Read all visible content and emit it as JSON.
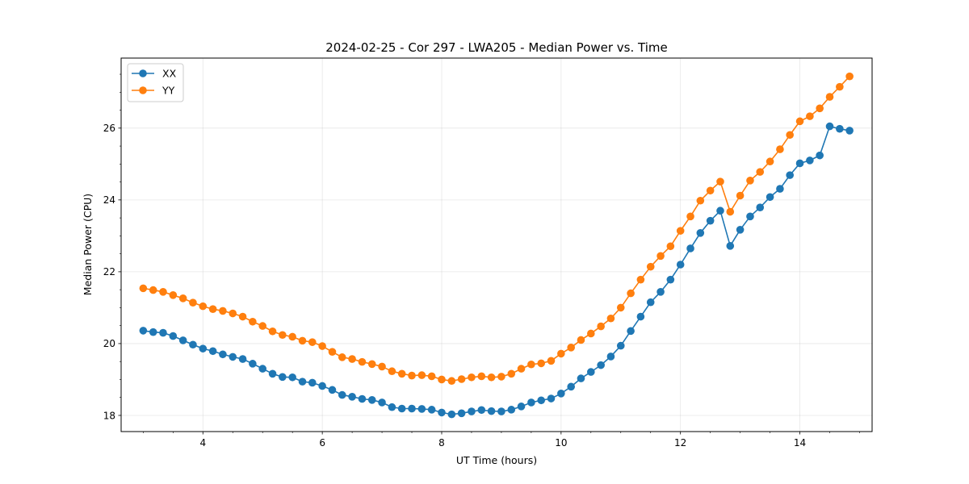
{
  "chart_data": {
    "type": "line",
    "title": "2024-02-25 - Cor 297 - LWA205 - Median Power vs. Time",
    "xlabel": "UT Time (hours)",
    "ylabel": "Median Power (CPU)",
    "xlim": [
      2.63,
      15.21
    ],
    "ylim": [
      17.55,
      27.95
    ],
    "xticks": [
      4,
      6,
      8,
      10,
      12,
      14
    ],
    "yticks": [
      18,
      20,
      22,
      24,
      26
    ],
    "xtick_labels": [
      "4",
      "6",
      "8",
      "10",
      "12",
      "14"
    ],
    "ytick_labels": [
      "18",
      "20",
      "22",
      "24",
      "26"
    ],
    "grid": true,
    "legend_position": "top-left",
    "x": [
      3.0,
      3.167,
      3.333,
      3.5,
      3.667,
      3.833,
      4.0,
      4.167,
      4.333,
      4.5,
      4.667,
      4.833,
      5.0,
      5.167,
      5.333,
      5.5,
      5.667,
      5.833,
      6.0,
      6.167,
      6.333,
      6.5,
      6.667,
      6.833,
      7.0,
      7.167,
      7.333,
      7.5,
      7.667,
      7.833,
      8.0,
      8.167,
      8.333,
      8.5,
      8.667,
      8.833,
      9.0,
      9.167,
      9.333,
      9.5,
      9.667,
      9.833,
      10.0,
      10.167,
      10.333,
      10.5,
      10.667,
      10.833,
      11.0,
      11.167,
      11.333,
      11.5,
      11.667,
      11.833,
      12.0,
      12.167,
      12.333,
      12.5,
      12.667,
      12.833,
      13.0,
      13.167,
      13.333,
      13.5,
      13.667,
      13.833,
      14.0,
      14.167,
      14.333,
      14.5,
      14.667,
      14.833
    ],
    "series": [
      {
        "name": "XX",
        "color": "#1f77b4",
        "values": [
          20.36,
          20.32,
          20.3,
          20.21,
          20.09,
          19.97,
          19.86,
          19.79,
          19.7,
          19.63,
          19.57,
          19.44,
          19.3,
          19.16,
          19.07,
          19.06,
          18.94,
          18.91,
          18.82,
          18.71,
          18.57,
          18.52,
          18.46,
          18.43,
          18.36,
          18.23,
          18.19,
          18.19,
          18.18,
          18.16,
          18.08,
          18.03,
          18.06,
          18.11,
          18.15,
          18.12,
          18.11,
          18.16,
          18.25,
          18.36,
          18.42,
          18.47,
          18.61,
          18.8,
          19.03,
          19.21,
          19.4,
          19.64,
          19.94,
          20.35,
          20.75,
          21.15,
          21.44,
          21.78,
          22.2,
          22.65,
          23.08,
          23.42,
          23.7,
          22.72,
          23.17,
          23.54,
          23.79,
          24.08,
          24.31,
          24.69,
          25.02,
          25.1,
          25.24,
          26.05,
          25.98,
          25.93
        ]
      },
      {
        "name": "YY",
        "color": "#ff7f0e",
        "values": [
          21.54,
          21.49,
          21.44,
          21.35,
          21.26,
          21.14,
          21.04,
          20.96,
          20.91,
          20.84,
          20.75,
          20.61,
          20.49,
          20.34,
          20.24,
          20.19,
          20.08,
          20.04,
          19.93,
          19.77,
          19.62,
          19.57,
          19.49,
          19.43,
          19.36,
          19.23,
          19.16,
          19.11,
          19.12,
          19.09,
          19.0,
          18.96,
          19.01,
          19.06,
          19.09,
          19.06,
          19.08,
          19.16,
          19.3,
          19.42,
          19.45,
          19.52,
          19.72,
          19.89,
          20.1,
          20.28,
          20.48,
          20.7,
          21.0,
          21.4,
          21.78,
          22.14,
          22.44,
          22.71,
          23.14,
          23.54,
          23.98,
          24.26,
          24.51,
          23.67,
          24.12,
          24.54,
          24.78,
          25.07,
          25.41,
          25.81,
          26.19,
          26.33,
          26.55,
          26.87,
          27.15,
          27.44
        ]
      }
    ]
  }
}
